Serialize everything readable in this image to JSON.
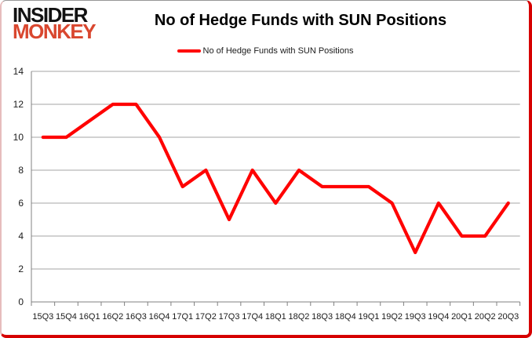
{
  "header": {
    "logo_line1": "INSIDER",
    "logo_line2": "MONKEY",
    "title": "No of Hedge Funds with SUN Positions",
    "legend_label": "No of Hedge Funds with SUN Positions"
  },
  "colors": {
    "line": "#ff0000",
    "logo_accent": "#d9472f",
    "grid": "#a6a6a6",
    "axis": "#808080",
    "label_text": "#1a1a1a",
    "frame_red": "#d60000",
    "frame_gray": "#969696"
  },
  "chart_data": {
    "type": "line",
    "title": "No of Hedge Funds with SUN Positions",
    "series_name": "No of Hedge Funds with SUN Positions",
    "categories": [
      "15Q3",
      "15Q4",
      "16Q1",
      "16Q2",
      "16Q3",
      "16Q4",
      "17Q1",
      "17Q2",
      "17Q3",
      "17Q4",
      "18Q1",
      "18Q2",
      "18Q3",
      "18Q4",
      "19Q1",
      "19Q2",
      "19Q3",
      "19Q4",
      "20Q1",
      "20Q2",
      "20Q3"
    ],
    "values": [
      10,
      10,
      11,
      12,
      12,
      10,
      7,
      8,
      5,
      8,
      6,
      8,
      7,
      7,
      7,
      6,
      3,
      6,
      4,
      4,
      6
    ],
    "xlabel": "",
    "ylabel": "",
    "ylim": [
      0,
      14
    ],
    "ytick_step": 2,
    "grid": true,
    "legend_position": "top-center"
  }
}
